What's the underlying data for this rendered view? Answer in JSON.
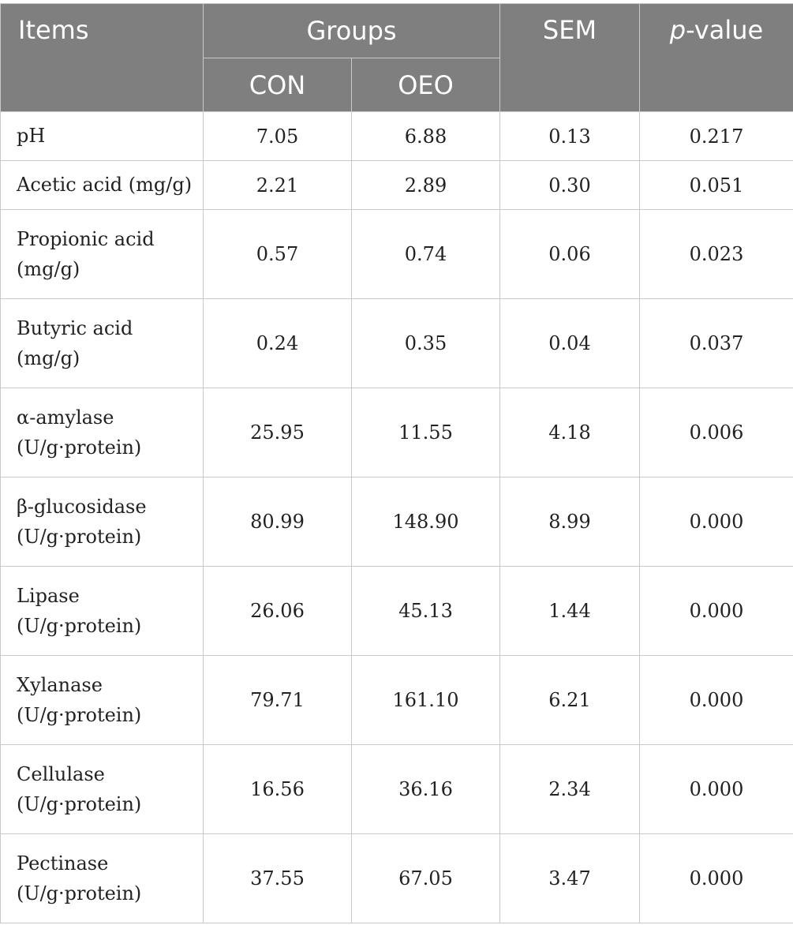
{
  "table": {
    "headers": {
      "items": "Items",
      "groups": "Groups",
      "con": "CON",
      "oeo": "OEO",
      "sem": "SEM",
      "pvalue_italic": "p",
      "pvalue_rest": "-value"
    },
    "rows": [
      {
        "item_line1": "pH",
        "item_line2": "",
        "con": "7.05",
        "oeo": "6.88",
        "sem": "0.13",
        "p": "0.217"
      },
      {
        "item_line1": "Acetic acid (mg/g)",
        "item_line2": "",
        "con": "2.21",
        "oeo": "2.89",
        "sem": "0.30",
        "p": "0.051"
      },
      {
        "item_line1": "Propionic acid",
        "item_line2": "(mg/g)",
        "con": "0.57",
        "oeo": "0.74",
        "sem": "0.06",
        "p": "0.023"
      },
      {
        "item_line1": "Butyric acid",
        "item_line2": "(mg/g)",
        "con": "0.24",
        "oeo": "0.35",
        "sem": "0.04",
        "p": "0.037"
      },
      {
        "item_line1": "α-amylase",
        "item_line2": "(U/g·protein)",
        "con": "25.95",
        "oeo": "11.55",
        "sem": "4.18",
        "p": "0.006"
      },
      {
        "item_line1": "β-glucosidase",
        "item_line2": "(U/g·protein)",
        "con": "80.99",
        "oeo": "148.90",
        "sem": "8.99",
        "p": "0.000"
      },
      {
        "item_line1": "Lipase",
        "item_line2": "(U/g·protein)",
        "con": "26.06",
        "oeo": "45.13",
        "sem": "1.44",
        "p": "0.000"
      },
      {
        "item_line1": "Xylanase",
        "item_line2": "(U/g·protein)",
        "con": "79.71",
        "oeo": "161.10",
        "sem": "6.21",
        "p": "0.000"
      },
      {
        "item_line1": "Cellulase",
        "item_line2": "(U/g·protein)",
        "con": "16.56",
        "oeo": "36.16",
        "sem": "2.34",
        "p": "0.000"
      },
      {
        "item_line1": "Pectinase",
        "item_line2": "(U/g·protein)",
        "con": "37.55",
        "oeo": "67.05",
        "sem": "3.47",
        "p": "0.000"
      }
    ],
    "colors": {
      "header_bg": "#7f7f7f",
      "header_text": "#ffffff",
      "border": "#c9c9c9",
      "body_text": "#222222"
    }
  }
}
